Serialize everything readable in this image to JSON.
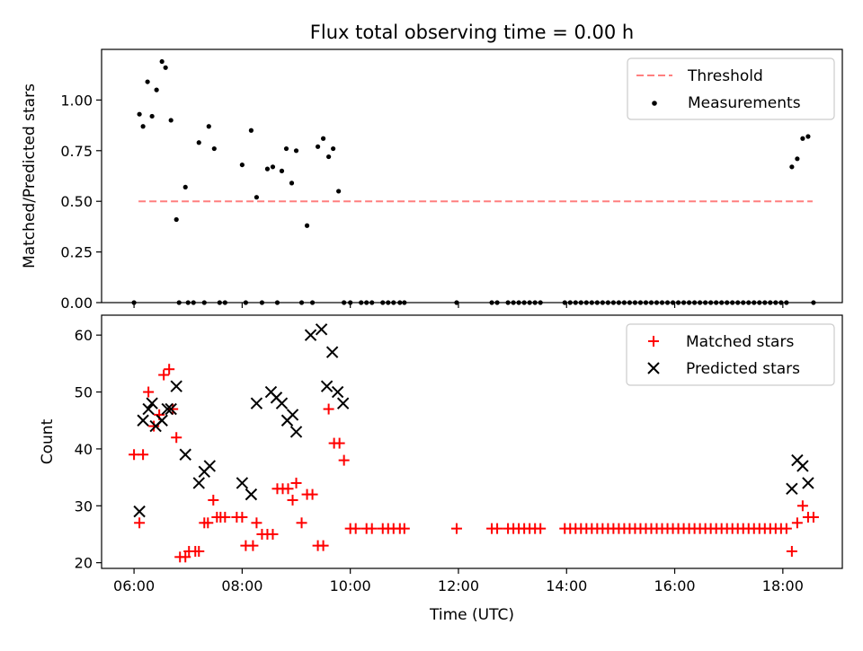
{
  "chart_data": [
    {
      "type": "scatter",
      "title": "Flux total observing time = 0.00 h",
      "xlabel": "",
      "ylabel": "Matched/Predicted stars",
      "xlim": [
        "05:24",
        "19:06"
      ],
      "ylim": [
        0,
        1.25
      ],
      "yticks": [
        "0.00",
        "0.25",
        "0.50",
        "0.75",
        "1.00"
      ],
      "legend": {
        "position": "top-right",
        "entries": [
          "Threshold",
          "Measurements"
        ]
      },
      "threshold": {
        "name": "Threshold",
        "value": 0.5,
        "x_start": "06:05",
        "x_end": "18:33",
        "color": "#ff7f7f"
      },
      "series": [
        {
          "name": "Measurements",
          "color": "#000000",
          "points": [
            [
              "06:00",
              0
            ],
            [
              "06:06",
              0.93
            ],
            [
              "06:10",
              0.87
            ],
            [
              "06:15",
              1.09
            ],
            [
              "06:20",
              0.92
            ],
            [
              "06:25",
              1.05
            ],
            [
              "06:31",
              1.19
            ],
            [
              "06:35",
              1.16
            ],
            [
              "06:41",
              0.9
            ],
            [
              "06:47",
              0.41
            ],
            [
              "06:50",
              0
            ],
            [
              "06:57",
              0.57
            ],
            [
              "07:00",
              0
            ],
            [
              "07:06",
              0
            ],
            [
              "07:12",
              0.79
            ],
            [
              "07:18",
              0
            ],
            [
              "07:23",
              0.87
            ],
            [
              "07:29",
              0.76
            ],
            [
              "07:35",
              0
            ],
            [
              "07:41",
              0
            ],
            [
              "08:00",
              0.68
            ],
            [
              "08:04",
              0
            ],
            [
              "08:10",
              0.85
            ],
            [
              "08:16",
              0.52
            ],
            [
              "08:22",
              0
            ],
            [
              "08:28",
              0.66
            ],
            [
              "08:34",
              0.67
            ],
            [
              "08:39",
              0
            ],
            [
              "08:44",
              0.65
            ],
            [
              "08:49",
              0.76
            ],
            [
              "08:55",
              0.59
            ],
            [
              "09:00",
              0.75
            ],
            [
              "09:06",
              0
            ],
            [
              "09:12",
              0.38
            ],
            [
              "09:18",
              0
            ],
            [
              "09:24",
              0.77
            ],
            [
              "09:30",
              0.81
            ],
            [
              "09:36",
              0.72
            ],
            [
              "09:41",
              0.76
            ],
            [
              "09:47",
              0.55
            ],
            [
              "09:53",
              0
            ],
            [
              "10:00",
              0
            ],
            [
              "10:12",
              0
            ],
            [
              "10:18",
              0
            ],
            [
              "10:24",
              0
            ],
            [
              "10:36",
              0
            ],
            [
              "10:42",
              0
            ],
            [
              "10:48",
              0
            ],
            [
              "10:55",
              0
            ],
            [
              "11:00",
              0
            ],
            [
              "11:58",
              0
            ],
            [
              "12:37",
              0
            ],
            [
              "12:43",
              0
            ],
            [
              "12:55",
              0
            ],
            [
              "13:01",
              0
            ],
            [
              "13:07",
              0
            ],
            [
              "13:13",
              0
            ],
            [
              "13:19",
              0
            ],
            [
              "13:25",
              0
            ],
            [
              "13:31",
              0
            ],
            [
              "13:58",
              0
            ],
            [
              "14:04",
              0
            ],
            [
              "14:10",
              0
            ],
            [
              "14:16",
              0
            ],
            [
              "14:22",
              0
            ],
            [
              "14:28",
              0
            ],
            [
              "14:34",
              0
            ],
            [
              "14:40",
              0
            ],
            [
              "14:46",
              0
            ],
            [
              "14:52",
              0
            ],
            [
              "14:58",
              0
            ],
            [
              "15:04",
              0
            ],
            [
              "15:10",
              0
            ],
            [
              "15:16",
              0
            ],
            [
              "15:22",
              0
            ],
            [
              "15:28",
              0
            ],
            [
              "15:34",
              0
            ],
            [
              "15:40",
              0
            ],
            [
              "15:46",
              0
            ],
            [
              "15:52",
              0
            ],
            [
              "15:58",
              0
            ],
            [
              "16:04",
              0
            ],
            [
              "16:10",
              0
            ],
            [
              "16:16",
              0
            ],
            [
              "16:22",
              0
            ],
            [
              "16:28",
              0
            ],
            [
              "16:34",
              0
            ],
            [
              "16:40",
              0
            ],
            [
              "16:46",
              0
            ],
            [
              "16:52",
              0
            ],
            [
              "16:58",
              0
            ],
            [
              "17:04",
              0
            ],
            [
              "17:10",
              0
            ],
            [
              "17:16",
              0
            ],
            [
              "17:22",
              0
            ],
            [
              "17:28",
              0
            ],
            [
              "17:34",
              0
            ],
            [
              "17:40",
              0
            ],
            [
              "17:46",
              0
            ],
            [
              "17:52",
              0
            ],
            [
              "17:58",
              0
            ],
            [
              "18:04",
              0
            ],
            [
              "18:10",
              0.67
            ],
            [
              "18:16",
              0.71
            ],
            [
              "18:22",
              0.81
            ],
            [
              "18:28",
              0.82
            ],
            [
              "18:34",
              0
            ]
          ]
        }
      ]
    },
    {
      "type": "scatter",
      "title": "",
      "xlabel": "Time (UTC)",
      "ylabel": "Count",
      "xlim": [
        "05:24",
        "19:06"
      ],
      "ylim": [
        19,
        63.5
      ],
      "xticks": [
        "06:00",
        "08:00",
        "10:00",
        "12:00",
        "14:00",
        "16:00",
        "18:00"
      ],
      "yticks": [
        "20",
        "30",
        "40",
        "50",
        "60"
      ],
      "legend": {
        "position": "top-right",
        "entries": [
          "Matched stars",
          "Predicted stars"
        ]
      },
      "series": [
        {
          "name": "Matched stars",
          "marker": "plus",
          "color": "#ff0000",
          "points": [
            [
              "06:00",
              39
            ],
            [
              "06:06",
              27
            ],
            [
              "06:10",
              39
            ],
            [
              "06:16",
              50
            ],
            [
              "06:22",
              44
            ],
            [
              "06:28",
              46
            ],
            [
              "06:33",
              53
            ],
            [
              "06:39",
              54
            ],
            [
              "06:43",
              47
            ],
            [
              "06:47",
              42
            ],
            [
              "06:51",
              21
            ],
            [
              "06:57",
              21
            ],
            [
              "07:01",
              22
            ],
            [
              "07:08",
              22
            ],
            [
              "07:12",
              22
            ],
            [
              "07:18",
              27
            ],
            [
              "07:22",
              27
            ],
            [
              "07:28",
              31
            ],
            [
              "07:32",
              28
            ],
            [
              "07:36",
              28
            ],
            [
              "07:41",
              28
            ],
            [
              "07:54",
              28
            ],
            [
              "08:00",
              28
            ],
            [
              "08:04",
              23
            ],
            [
              "08:12",
              23
            ],
            [
              "08:16",
              27
            ],
            [
              "08:22",
              25
            ],
            [
              "08:28",
              25
            ],
            [
              "08:34",
              25
            ],
            [
              "08:39",
              33
            ],
            [
              "08:45",
              33
            ],
            [
              "08:51",
              33
            ],
            [
              "08:56",
              31
            ],
            [
              "09:00",
              34
            ],
            [
              "09:06",
              27
            ],
            [
              "09:12",
              32
            ],
            [
              "09:18",
              32
            ],
            [
              "09:24",
              23
            ],
            [
              "09:30",
              23
            ],
            [
              "09:36",
              47
            ],
            [
              "09:42",
              41
            ],
            [
              "09:48",
              41
            ],
            [
              "09:53",
              38
            ],
            [
              "10:00",
              26
            ],
            [
              "10:06",
              26
            ],
            [
              "10:18",
              26
            ],
            [
              "10:24",
              26
            ],
            [
              "10:36",
              26
            ],
            [
              "10:42",
              26
            ],
            [
              "10:48",
              26
            ],
            [
              "10:55",
              26
            ],
            [
              "11:00",
              26
            ],
            [
              "11:58",
              26
            ],
            [
              "12:37",
              26
            ],
            [
              "12:43",
              26
            ],
            [
              "12:55",
              26
            ],
            [
              "13:01",
              26
            ],
            [
              "13:07",
              26
            ],
            [
              "13:13",
              26
            ],
            [
              "13:19",
              26
            ],
            [
              "13:25",
              26
            ],
            [
              "13:31",
              26
            ],
            [
              "13:58",
              26
            ],
            [
              "14:04",
              26
            ],
            [
              "14:10",
              26
            ],
            [
              "14:16",
              26
            ],
            [
              "14:22",
              26
            ],
            [
              "14:28",
              26
            ],
            [
              "14:34",
              26
            ],
            [
              "14:40",
              26
            ],
            [
              "14:46",
              26
            ],
            [
              "14:52",
              26
            ],
            [
              "14:58",
              26
            ],
            [
              "15:04",
              26
            ],
            [
              "15:10",
              26
            ],
            [
              "15:16",
              26
            ],
            [
              "15:22",
              26
            ],
            [
              "15:28",
              26
            ],
            [
              "15:34",
              26
            ],
            [
              "15:40",
              26
            ],
            [
              "15:46",
              26
            ],
            [
              "15:52",
              26
            ],
            [
              "15:58",
              26
            ],
            [
              "16:04",
              26
            ],
            [
              "16:10",
              26
            ],
            [
              "16:16",
              26
            ],
            [
              "16:22",
              26
            ],
            [
              "16:28",
              26
            ],
            [
              "16:34",
              26
            ],
            [
              "16:40",
              26
            ],
            [
              "16:46",
              26
            ],
            [
              "16:52",
              26
            ],
            [
              "16:58",
              26
            ],
            [
              "17:04",
              26
            ],
            [
              "17:10",
              26
            ],
            [
              "17:16",
              26
            ],
            [
              "17:22",
              26
            ],
            [
              "17:28",
              26
            ],
            [
              "17:34",
              26
            ],
            [
              "17:40",
              26
            ],
            [
              "17:46",
              26
            ],
            [
              "17:52",
              26
            ],
            [
              "17:58",
              26
            ],
            [
              "18:04",
              26
            ],
            [
              "18:10",
              22
            ],
            [
              "18:16",
              27
            ],
            [
              "18:22",
              30
            ],
            [
              "18:28",
              28
            ],
            [
              "18:34",
              28
            ]
          ]
        },
        {
          "name": "Predicted stars",
          "marker": "x",
          "color": "#000000",
          "points": [
            [
              "06:06",
              29
            ],
            [
              "06:10",
              45
            ],
            [
              "06:16",
              47
            ],
            [
              "06:20",
              48
            ],
            [
              "06:24",
              44
            ],
            [
              "06:31",
              45
            ],
            [
              "06:37",
              47
            ],
            [
              "06:41",
              47
            ],
            [
              "06:47",
              51
            ],
            [
              "06:57",
              39
            ],
            [
              "07:12",
              34
            ],
            [
              "07:18",
              36
            ],
            [
              "07:24",
              37
            ],
            [
              "08:00",
              34
            ],
            [
              "08:10",
              32
            ],
            [
              "08:16",
              48
            ],
            [
              "08:32",
              50
            ],
            [
              "08:38",
              49
            ],
            [
              "08:44",
              48
            ],
            [
              "08:50",
              45
            ],
            [
              "08:56",
              46
            ],
            [
              "09:00",
              43
            ],
            [
              "09:16",
              60
            ],
            [
              "09:28",
              61
            ],
            [
              "09:34",
              51
            ],
            [
              "09:40",
              57
            ],
            [
              "09:46",
              50
            ],
            [
              "09:52",
              48
            ],
            [
              "18:10",
              33
            ],
            [
              "18:16",
              38
            ],
            [
              "18:22",
              37
            ],
            [
              "18:28",
              34
            ]
          ]
        }
      ]
    }
  ]
}
